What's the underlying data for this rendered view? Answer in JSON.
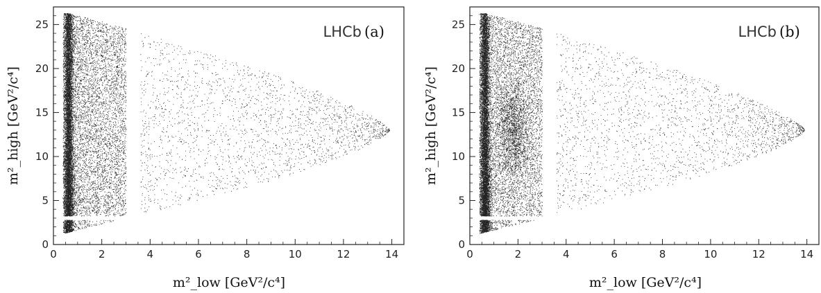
{
  "chart_data": [
    {
      "type": "scatter",
      "panel_tag": "(a)",
      "brand": "LHCb",
      "xlabel": "m²_low  [GeV²/c⁴]",
      "ylabel": "m²_high  [GeV²/c⁴]",
      "xlim": [
        0,
        14.5
      ],
      "ylim": [
        0,
        27
      ],
      "xticks": [
        "0",
        "2",
        "4",
        "6",
        "8",
        "10",
        "12",
        "14"
      ],
      "yticks": [
        "0",
        "5",
        "10",
        "15",
        "20",
        "25"
      ],
      "grid": false,
      "points_desc": "Dalitz-plot event distribution: triangular region bounded at x≈0.4–14, y≈1–26.3; dense vertical band at x≈0.5–0.8; vetoed strip 3.0<x<3.6 and horizontal gap near y≈3.0 for x<3.",
      "marker_color": "#222222"
    },
    {
      "type": "scatter",
      "panel_tag": "(b)",
      "brand": "LHCb",
      "xlabel": "m²_low  [GeV²/c⁴]",
      "ylabel": "m²_high  [GeV²/c⁴]",
      "xlim": [
        0,
        14.5
      ],
      "ylim": [
        0,
        27
      ],
      "xticks": [
        "0",
        "2",
        "4",
        "6",
        "8",
        "10",
        "12",
        "14"
      ],
      "yticks": [
        "0",
        "5",
        "10",
        "15",
        "20",
        "25"
      ],
      "grid": false,
      "points_desc": "Dalitz-plot event distribution with same boundaries as (a); dense band at x≈0.5–0.8 and additional enhancement near x≈1.5–2.2 for y≈10–16.",
      "marker_color": "#222222"
    }
  ]
}
